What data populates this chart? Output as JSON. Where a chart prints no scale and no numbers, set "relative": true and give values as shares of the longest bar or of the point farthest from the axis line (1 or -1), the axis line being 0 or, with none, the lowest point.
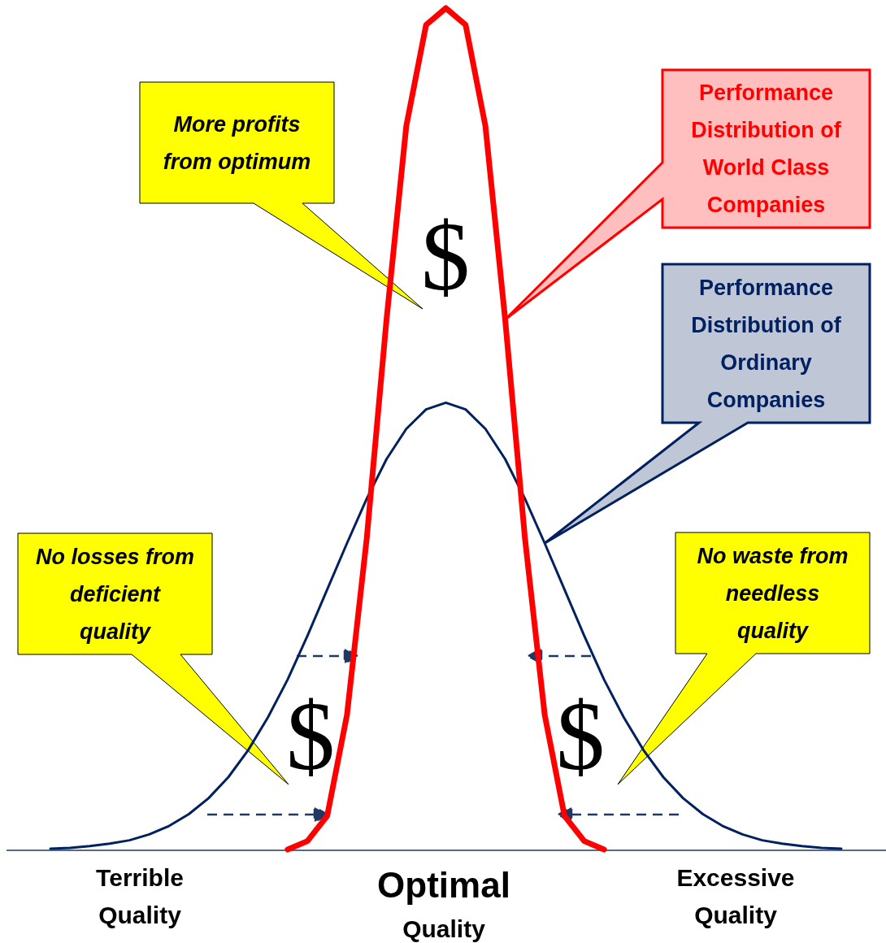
{
  "chart_data": {
    "type": "line",
    "relative": true,
    "categories": [
      null,
      null,
      null,
      null,
      null,
      null,
      null,
      null,
      null,
      null,
      null,
      null,
      null,
      null,
      null,
      null,
      null,
      null,
      null,
      null,
      null,
      null,
      null,
      null,
      null,
      null,
      null,
      null,
      null,
      null,
      null,
      null,
      null,
      null,
      null,
      null,
      null,
      null,
      null,
      null,
      null
    ],
    "series": [
      {
        "name": "Performance Distribution of Ordinary Companies",
        "color": "#002060",
        "values": [
          0.001,
          0.002,
          0.004,
          0.007,
          0.011,
          0.018,
          0.028,
          0.042,
          0.061,
          0.086,
          0.118,
          0.157,
          0.202,
          0.254,
          0.309,
          0.364,
          0.417,
          0.464,
          0.5,
          0.523,
          0.531,
          0.523,
          0.5,
          0.464,
          0.417,
          0.364,
          0.309,
          0.254,
          0.202,
          0.157,
          0.118,
          0.086,
          0.061,
          0.042,
          0.028,
          0.018,
          0.011,
          0.007,
          0.004,
          0.002,
          0.001
        ]
      },
      {
        "name": "Performance Distribution of World Class Companies",
        "color": "#ff0000",
        "values": [
          null,
          null,
          null,
          null,
          null,
          null,
          null,
          null,
          null,
          null,
          null,
          null,
          0,
          0.01,
          0.04,
          0.16,
          0.37,
          0.63,
          0.86,
          0.98,
          1,
          0.98,
          0.86,
          0.63,
          0.37,
          0.16,
          0.04,
          0.01,
          0,
          null,
          null,
          null,
          null,
          null,
          null,
          null,
          null,
          null,
          null,
          null,
          null
        ]
      }
    ],
    "annotations": [
      "More profits from optimum",
      "No losses from deficient quality",
      "No waste from needless quality",
      "$",
      "$",
      "$",
      "Terrible Quality",
      "Optimal Quality",
      "Excessive Quality"
    ]
  }
}
